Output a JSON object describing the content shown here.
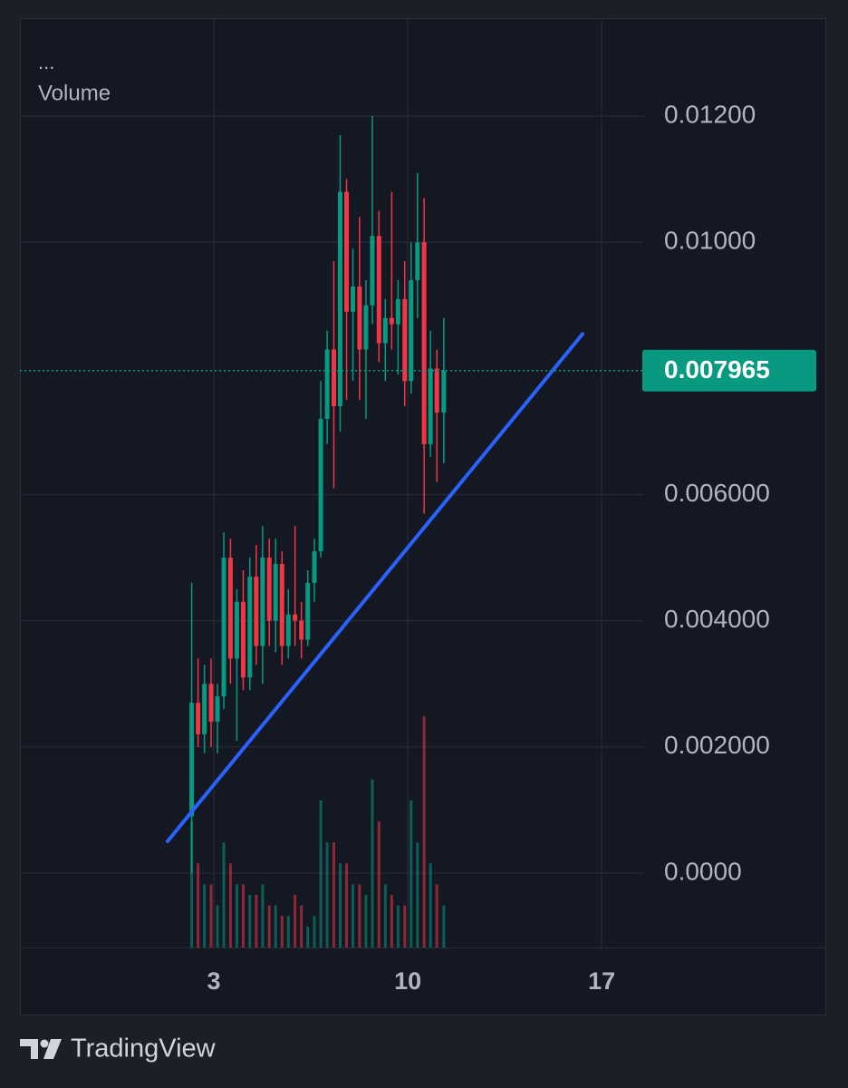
{
  "chart_data": {
    "type": "candlestick",
    "menu": "...",
    "title": "Volume",
    "brand": "TradingView",
    "x": [
      2.2,
      2.43,
      2.66,
      2.9,
      3.13,
      3.36,
      3.6,
      3.83,
      4.06,
      4.3,
      4.53,
      4.76,
      5.0,
      5.23,
      5.46,
      5.69,
      5.93,
      6.16,
      6.39,
      6.63,
      6.86,
      7.09,
      7.33,
      7.56,
      7.79,
      8.02,
      8.26,
      8.49,
      8.72,
      8.96,
      9.19,
      9.42,
      9.65,
      9.89,
      10.12,
      10.35,
      10.59,
      10.82,
      11.05,
      11.3
    ],
    "open": [
      0.0009,
      0.0027,
      0.0022,
      0.003,
      0.0024,
      0.0028,
      0.005,
      0.0034,
      0.0043,
      0.0031,
      0.0047,
      0.0036,
      0.005,
      0.004,
      0.0049,
      0.0036,
      0.0041,
      0.004,
      0.0037,
      0.0046,
      0.0051,
      0.0072,
      0.0083,
      0.0074,
      0.0108,
      0.0089,
      0.0093,
      0.0083,
      0.009,
      0.0101,
      0.0084,
      0.0088,
      0.0087,
      0.0091,
      0.0078,
      0.0094,
      0.01,
      0.0068,
      0.008,
      0.0073
    ],
    "high": [
      0.0046,
      0.0034,
      0.0033,
      0.0034,
      0.003,
      0.0054,
      0.0053,
      0.0045,
      0.0048,
      0.005,
      0.0052,
      0.0055,
      0.0053,
      0.0053,
      0.0051,
      0.0045,
      0.0055,
      0.0043,
      0.0048,
      0.0053,
      0.0078,
      0.0086,
      0.0097,
      0.0117,
      0.011,
      0.0099,
      0.0104,
      0.0094,
      0.012,
      0.0105,
      0.0091,
      0.0108,
      0.0094,
      0.0097,
      0.01,
      0.0111,
      0.0107,
      0.0086,
      0.0083,
      0.0088
    ],
    "low": [
      0.0,
      0.002,
      0.0019,
      0.002,
      0.0019,
      0.0026,
      0.003,
      0.0021,
      0.0029,
      0.0029,
      0.0033,
      0.003,
      0.0036,
      0.0035,
      0.0033,
      0.0034,
      0.0036,
      0.0034,
      0.0036,
      0.0043,
      0.005,
      0.0068,
      0.0061,
      0.007,
      0.0075,
      0.0078,
      0.0075,
      0.0072,
      0.0087,
      0.0081,
      0.0078,
      0.0083,
      0.0079,
      0.0074,
      0.0076,
      0.0088,
      0.0057,
      0.0066,
      0.0062,
      0.0065
    ],
    "close": [
      0.0027,
      0.0022,
      0.003,
      0.0024,
      0.0028,
      0.005,
      0.0034,
      0.0043,
      0.0031,
      0.0047,
      0.0036,
      0.005,
      0.004,
      0.0049,
      0.0036,
      0.0041,
      0.004,
      0.0037,
      0.0046,
      0.0051,
      0.0072,
      0.0083,
      0.0074,
      0.0108,
      0.0089,
      0.0093,
      0.0083,
      0.009,
      0.0101,
      0.0084,
      0.0088,
      0.0087,
      0.0091,
      0.0078,
      0.0094,
      0.01,
      0.0068,
      0.008,
      0.0073,
      0.007965
    ],
    "volume": [
      6,
      4,
      3,
      3,
      2,
      5,
      4,
      3,
      3,
      2.5,
      2.5,
      3,
      2,
      2,
      1.5,
      1.5,
      2.5,
      2,
      1,
      1.5,
      7,
      5,
      5,
      4,
      4,
      3,
      3,
      2.5,
      8,
      6,
      3,
      2.5,
      2,
      2,
      7,
      5,
      11,
      4,
      3,
      2
    ],
    "up_color": "#089981",
    "down_color": "#f23645",
    "xlim": [
      -4,
      18.5
    ],
    "xticks": [
      3,
      10,
      17
    ],
    "ylim": [
      -0.00118,
      0.013554
    ],
    "yticks": [
      {
        "value": 0.0,
        "label": "0.0000"
      },
      {
        "value": 0.002,
        "label": "0.002000"
      },
      {
        "value": 0.004,
        "label": "0.004000"
      },
      {
        "value": 0.006,
        "label": "0.006000"
      },
      {
        "value": 0.01,
        "label": "0.01000"
      },
      {
        "value": 0.012,
        "label": "0.01200"
      }
    ],
    "grid": true,
    "last_price": 0.007965,
    "last_price_color": "#089981",
    "trend_line": {
      "x": [
        1.33,
        16.31
      ],
      "y": [
        0.000504,
        0.008547
      ],
      "color": "#2962ff"
    }
  }
}
